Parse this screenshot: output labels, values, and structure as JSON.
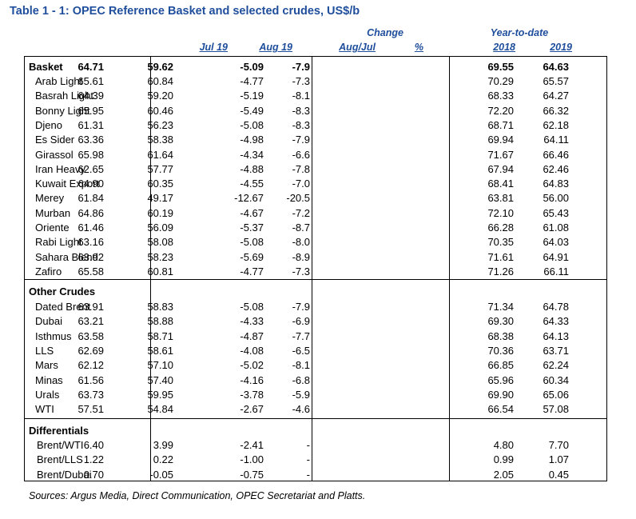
{
  "title": "Table 1 - 1: OPEC Reference Basket and selected crudes, US$/b",
  "headers": {
    "change": "Change",
    "ytd": "Year-to-date",
    "jul19": "Jul 19",
    "aug19": "Aug 19",
    "augjul": "Aug/Jul",
    "pct": "%",
    "y2018": "2018",
    "y2019": "2019"
  },
  "basket": {
    "label": "Basket",
    "values": [
      "64.71",
      "59.62",
      "-5.09",
      "-7.9",
      "69.55",
      "64.63"
    ],
    "rows": [
      {
        "name": "Arab Light",
        "values": [
          "65.61",
          "60.84",
          "-4.77",
          "-7.3",
          "70.29",
          "65.57"
        ]
      },
      {
        "name": "Basrah Light",
        "values": [
          "64.39",
          "59.20",
          "-5.19",
          "-8.1",
          "68.33",
          "64.27"
        ]
      },
      {
        "name": "Bonny Light",
        "values": [
          "65.95",
          "60.46",
          "-5.49",
          "-8.3",
          "72.20",
          "66.32"
        ]
      },
      {
        "name": "Djeno",
        "values": [
          "61.31",
          "56.23",
          "-5.08",
          "-8.3",
          "68.71",
          "62.18"
        ]
      },
      {
        "name": "Es Sider",
        "values": [
          "63.36",
          "58.38",
          "-4.98",
          "-7.9",
          "69.94",
          "64.11"
        ]
      },
      {
        "name": "Girassol",
        "values": [
          "65.98",
          "61.64",
          "-4.34",
          "-6.6",
          "71.67",
          "66.46"
        ]
      },
      {
        "name": "Iran Heavy",
        "values": [
          "62.65",
          "57.77",
          "-4.88",
          "-7.8",
          "67.94",
          "62.46"
        ]
      },
      {
        "name": "Kuwait Export",
        "values": [
          "64.90",
          "60.35",
          "-4.55",
          "-7.0",
          "68.41",
          "64.83"
        ]
      },
      {
        "name": "Merey",
        "values": [
          "61.84",
          "49.17",
          "-12.67",
          "-20.5",
          "63.81",
          "56.00"
        ]
      },
      {
        "name": "Murban",
        "values": [
          "64.86",
          "60.19",
          "-4.67",
          "-7.2",
          "72.10",
          "65.43"
        ]
      },
      {
        "name": "Oriente",
        "values": [
          "61.46",
          "56.09",
          "-5.37",
          "-8.7",
          "66.28",
          "61.08"
        ]
      },
      {
        "name": "Rabi Light",
        "values": [
          "63.16",
          "58.08",
          "-5.08",
          "-8.0",
          "70.35",
          "64.03"
        ]
      },
      {
        "name": "Sahara Blend",
        "values": [
          "63.92",
          "58.23",
          "-5.69",
          "-8.9",
          "71.61",
          "64.91"
        ]
      },
      {
        "name": "Zafiro",
        "values": [
          "65.58",
          "60.81",
          "-4.77",
          "-7.3",
          "71.26",
          "66.11"
        ]
      }
    ]
  },
  "other": {
    "label": "Other Crudes",
    "rows": [
      {
        "name": "Dated Brent",
        "values": [
          "63.91",
          "58.83",
          "-5.08",
          "-7.9",
          "71.34",
          "64.78"
        ]
      },
      {
        "name": "Dubai",
        "values": [
          "63.21",
          "58.88",
          "-4.33",
          "-6.9",
          "69.30",
          "64.33"
        ]
      },
      {
        "name": "Isthmus",
        "values": [
          "63.58",
          "58.71",
          "-4.87",
          "-7.7",
          "68.38",
          "64.13"
        ]
      },
      {
        "name": "LLS",
        "values": [
          "62.69",
          "58.61",
          "-4.08",
          "-6.5",
          "70.36",
          "63.71"
        ]
      },
      {
        "name": "Mars",
        "values": [
          "62.12",
          "57.10",
          "-5.02",
          "-8.1",
          "66.85",
          "62.24"
        ]
      },
      {
        "name": "Minas",
        "values": [
          "61.56",
          "57.40",
          "-4.16",
          "-6.8",
          "65.96",
          "60.34"
        ]
      },
      {
        "name": "Urals",
        "values": [
          "63.73",
          "59.95",
          "-3.78",
          "-5.9",
          "69.90",
          "65.06"
        ]
      },
      {
        "name": "WTI",
        "values": [
          "57.51",
          "54.84",
          "-2.67",
          "-4.6",
          "66.54",
          "57.08"
        ]
      }
    ]
  },
  "differentials": {
    "label": "Differentials",
    "rows": [
      {
        "name": "Brent/WTI",
        "values": [
          "6.40",
          "3.99",
          "-2.41",
          "-",
          "4.80",
          "7.70"
        ]
      },
      {
        "name": "Brent/LLS",
        "values": [
          "1.22",
          "0.22",
          "-1.00",
          "-",
          "0.99",
          "1.07"
        ]
      },
      {
        "name": "Brent/Dubai",
        "values": [
          "0.70",
          "-0.05",
          "-0.75",
          "-",
          "2.05",
          "0.45"
        ]
      }
    ]
  },
  "sources": "Sources:  Argus Media, Direct Communication, OPEC Secretariat and Platts."
}
